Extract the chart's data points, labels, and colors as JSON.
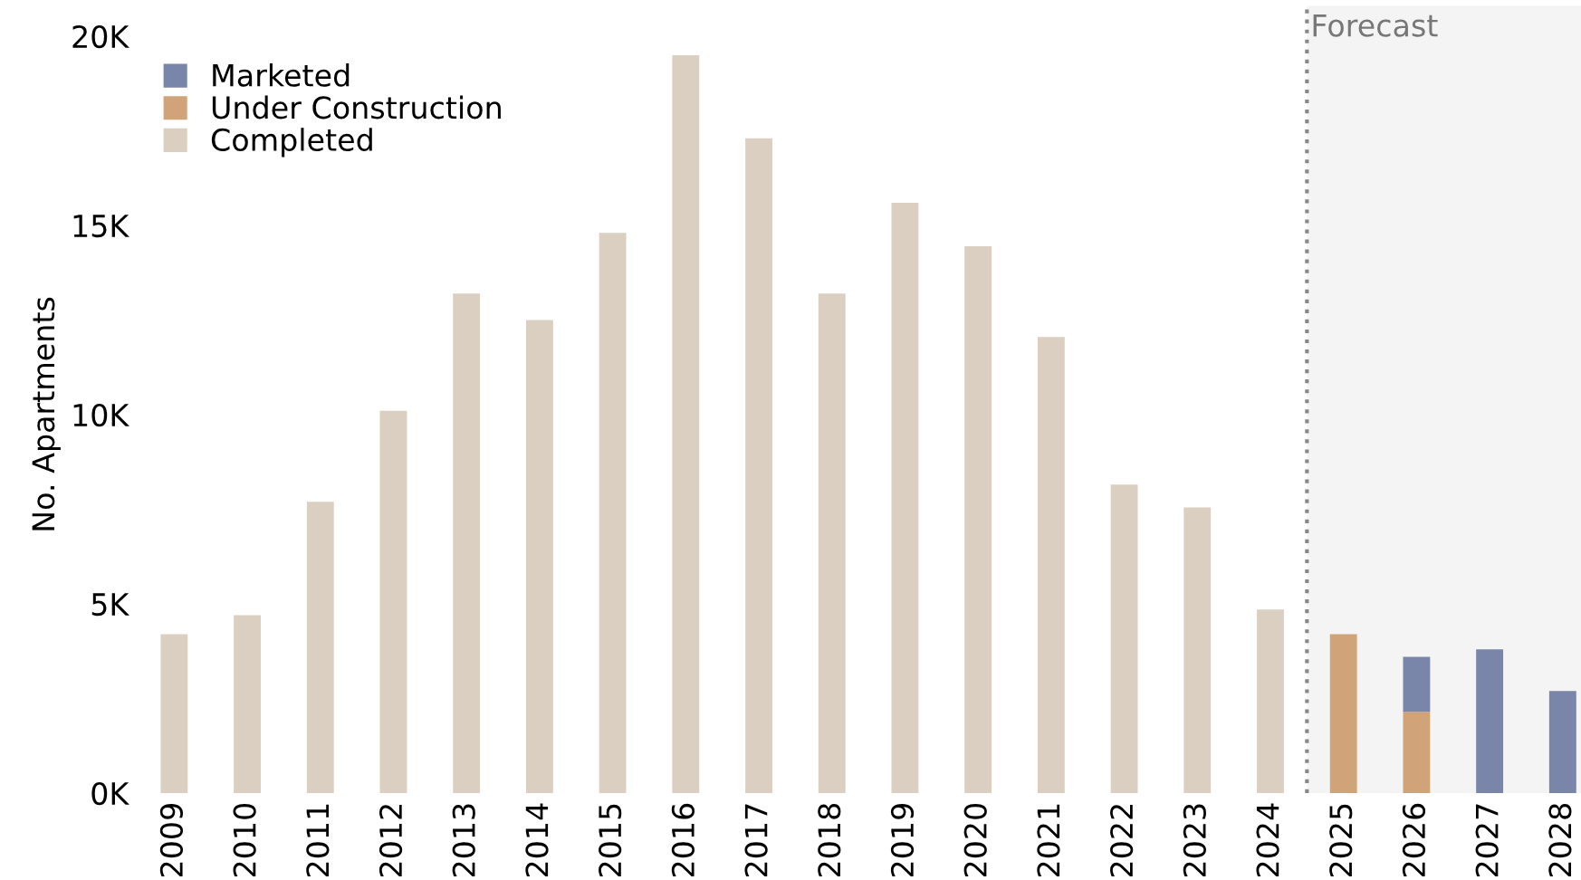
{
  "chart_data": {
    "type": "bar",
    "ylabel": "No. Apartments",
    "stacked": true,
    "legend": "top left",
    "grid": false,
    "categories": [
      "2009",
      "2010",
      "2011",
      "2012",
      "2013",
      "2014",
      "2015",
      "2016",
      "2017",
      "2018",
      "2019",
      "2020",
      "2021",
      "2022",
      "2023",
      "2024",
      "2025",
      "2026",
      "2027",
      "2028"
    ],
    "series": [
      {
        "name": "Completed",
        "color": "#dbcfc1",
        "values": [
          4200,
          4700,
          7700,
          10100,
          13200,
          12500,
          14800,
          19500,
          17300,
          13200,
          15600,
          14450,
          12050,
          8150,
          7550,
          4850,
          0,
          0,
          0,
          0
        ]
      },
      {
        "name": "Under Construction",
        "color": "#d0a478",
        "values": [
          0,
          0,
          0,
          0,
          0,
          0,
          0,
          0,
          0,
          0,
          0,
          0,
          0,
          0,
          0,
          0,
          4200,
          2150,
          0,
          0
        ]
      },
      {
        "name": "Marketed",
        "color": "#7985a9",
        "values": [
          0,
          0,
          0,
          0,
          0,
          0,
          0,
          0,
          0,
          0,
          0,
          0,
          0,
          0,
          0,
          0,
          0,
          1450,
          3800,
          2700
        ]
      }
    ],
    "ylim": [
      0,
      20000
    ],
    "yticks": [
      {
        "value": 0,
        "label": "0K"
      },
      {
        "value": 5000,
        "label": "5K"
      },
      {
        "value": 10000,
        "label": "10K"
      },
      {
        "value": 15000,
        "label": "15K"
      },
      {
        "value": 20000,
        "label": "20K"
      }
    ],
    "bands": [
      {
        "axis": "x",
        "from": "2025",
        "to": "2028",
        "label": "Forecast",
        "color": "#f4f4f4"
      }
    ]
  }
}
